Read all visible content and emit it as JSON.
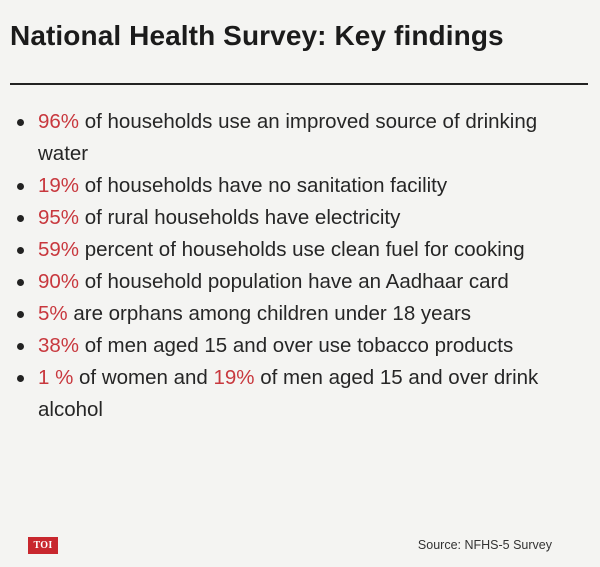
{
  "title": "National Health Survey: Key findings",
  "findings": [
    {
      "pct": "96%",
      "text": " of households use an improved source of drinking water"
    },
    {
      "pct": "19%",
      "text": " of households have no sanitation facility"
    },
    {
      "pct": "95%",
      "text": " of rural households have electricity"
    },
    {
      "pct": "59%",
      "text": " percent of households use clean fuel for cooking"
    },
    {
      "pct": "90%",
      "text": " of household population have an Aadhaar card"
    },
    {
      "pct": "5%",
      "text": " are orphans among children under 18 years"
    },
    {
      "pct": "38%",
      "text": " of men aged 15 and over use tobacco products"
    },
    {
      "pct": "1 %",
      "text": " of women and ",
      "pct2": "19%",
      "text2": " of men aged 15 and over drink alcohol"
    }
  ],
  "logo": "TOI",
  "source": "Source: NFHS-5 Survey",
  "colors": {
    "accent": "#c8383e",
    "logo_bg": "#c8272e",
    "background": "#f4f4f2"
  }
}
